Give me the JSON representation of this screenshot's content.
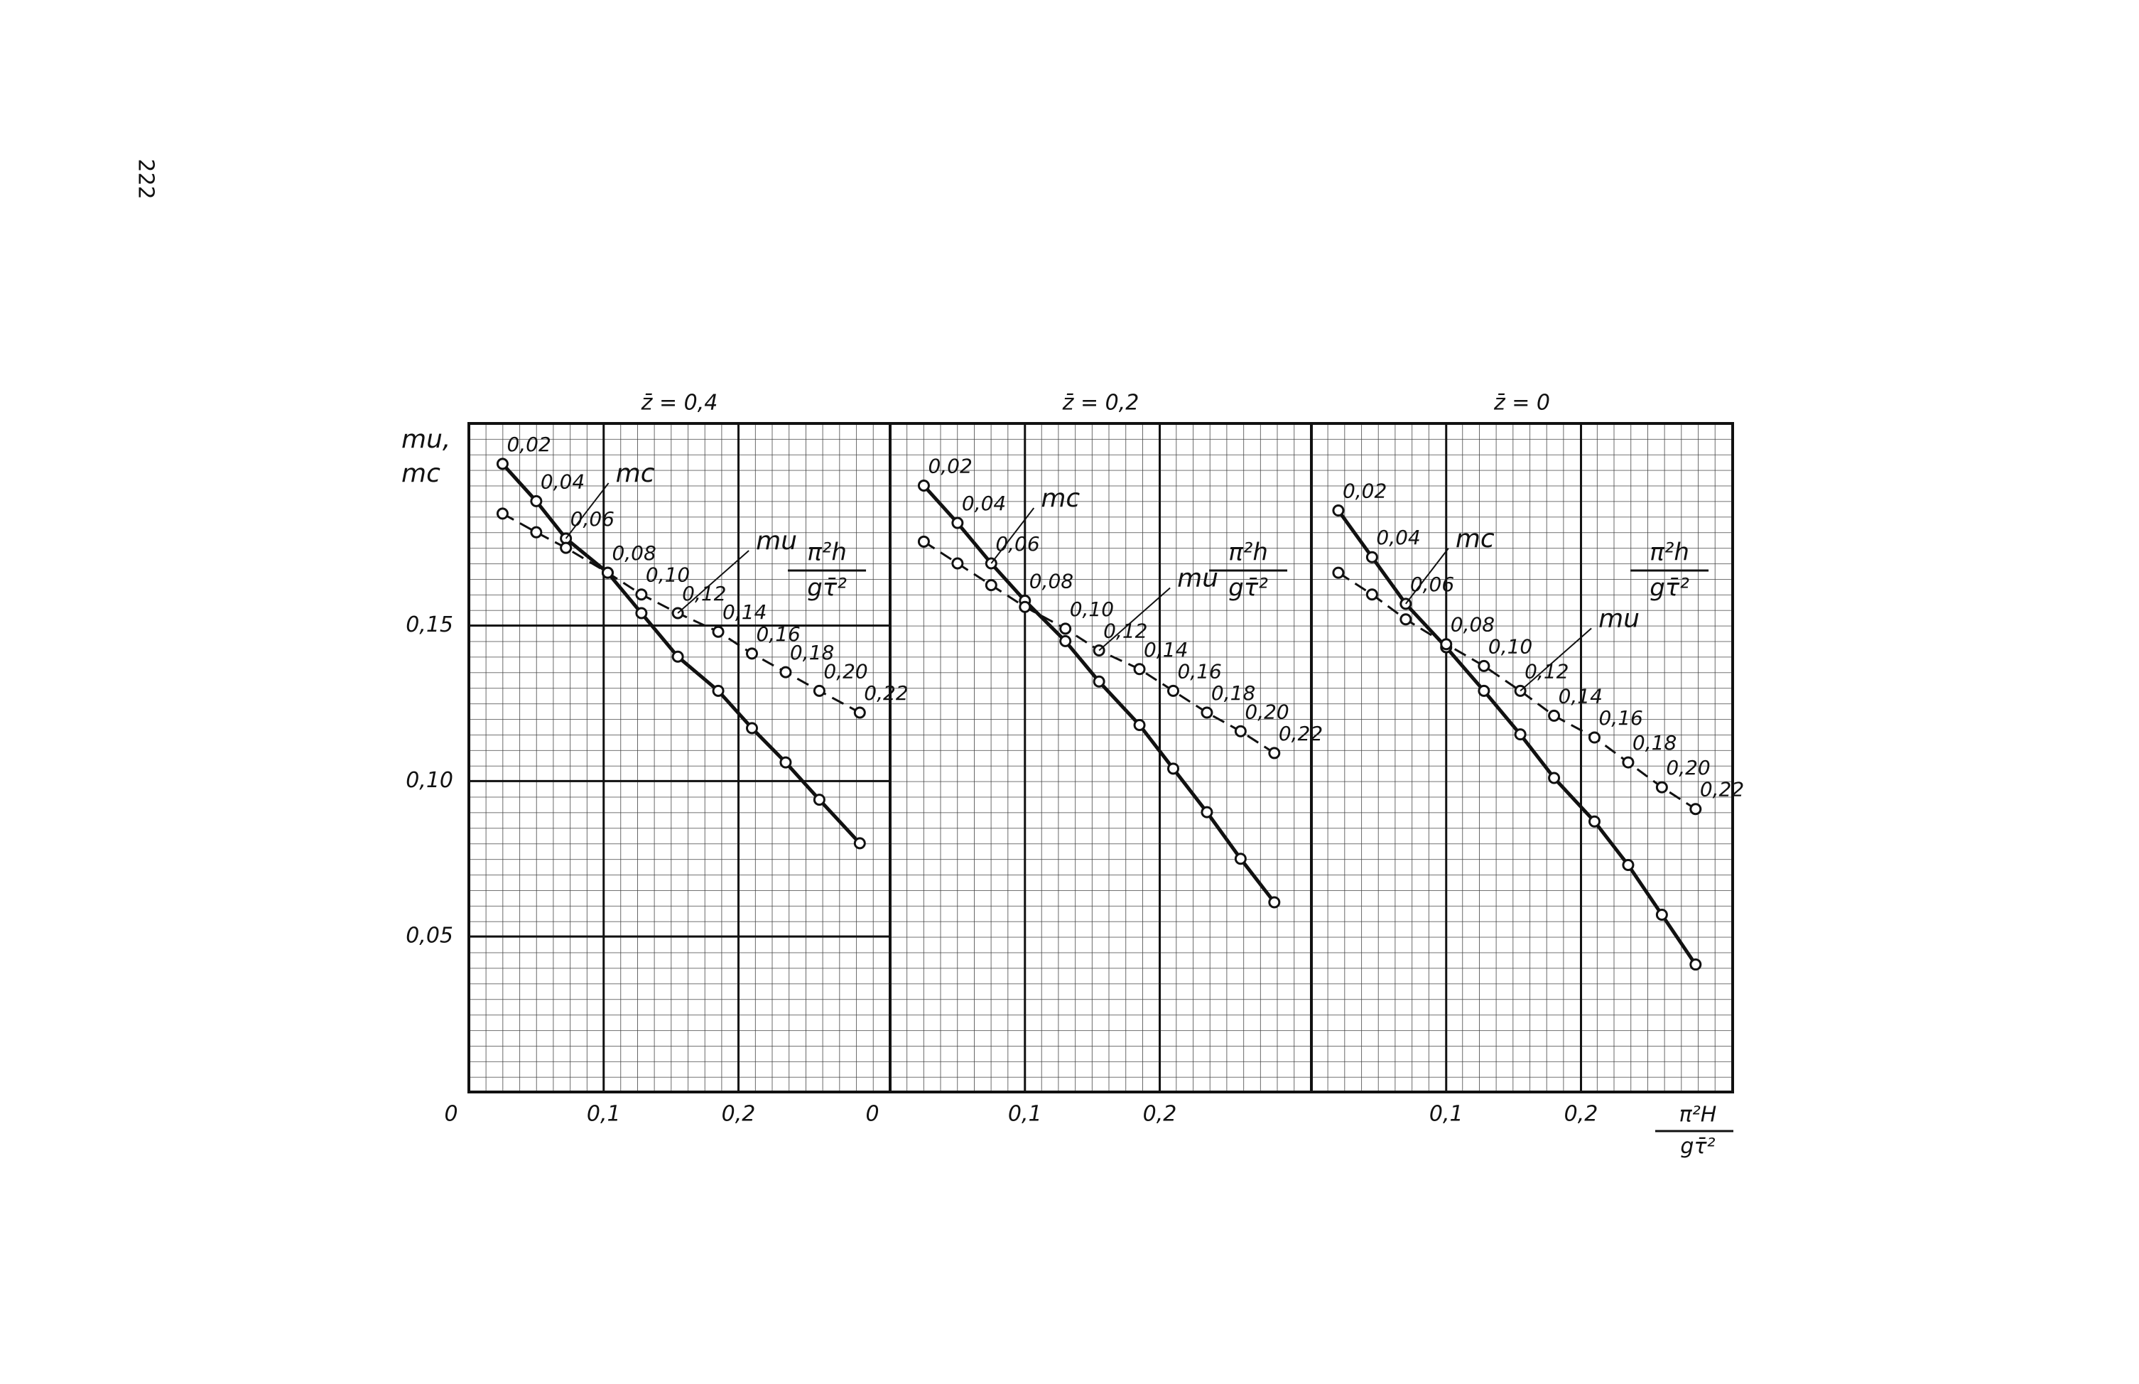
{
  "page_number": "222",
  "y_label": [
    "mu,",
    "mc"
  ],
  "x_label": {
    "numerator": "π²H",
    "denominator": "gτ̄²"
  },
  "chart_data": [
    {
      "type": "line",
      "title": "z̄ = 0,4",
      "x": [
        0.025,
        0.05,
        0.072,
        0.103,
        0.128,
        0.155,
        0.185,
        0.21,
        0.235,
        0.26,
        0.29
      ],
      "point_labels": [
        "0,02",
        "0,04",
        "0,06",
        "0,08",
        "0,10",
        "0,12",
        "0,14",
        "0,16",
        "0,18",
        "0,20",
        "0,22"
      ],
      "series": [
        {
          "name": "mc",
          "color": "#111111",
          "dashed": false,
          "values": [
            0.202,
            0.19,
            0.178,
            0.167,
            0.154,
            0.14,
            0.129,
            0.117,
            0.106,
            0.094,
            0.08
          ]
        },
        {
          "name": "mu",
          "color": "#111111",
          "dashed": true,
          "values": [
            0.186,
            0.18,
            0.175,
            0.167,
            0.16,
            0.154,
            0.148,
            0.141,
            0.135,
            0.129,
            0.122
          ]
        }
      ],
      "annotation": {
        "numerator": "π²h",
        "denominator": "gτ̄²"
      },
      "xlim": [
        0,
        0.3125
      ],
      "ylim": [
        0,
        0.215
      ],
      "xticks": [
        {
          "value": 0,
          "label": "0"
        },
        {
          "value": 0.1,
          "label": "0,1"
        },
        {
          "value": 0.2,
          "label": "0,2"
        }
      ],
      "yticks": [
        {
          "value": 0.05,
          "label": "0,05"
        },
        {
          "value": 0.1,
          "label": "0,10"
        },
        {
          "value": 0.15,
          "label": "0,15"
        }
      ],
      "grid": true
    },
    {
      "type": "line",
      "title": "z̄ = 0,2",
      "x": [
        0.025,
        0.05,
        0.075,
        0.1,
        0.13,
        0.155,
        0.185,
        0.21,
        0.235,
        0.26,
        0.285
      ],
      "point_labels": [
        "0,02",
        "0,04",
        "0,06",
        "0,08",
        "0,10",
        "0,12",
        "0,14",
        "0,16",
        "0,18",
        "0,20",
        "0,22"
      ],
      "series": [
        {
          "name": "mc",
          "color": "#111111",
          "dashed": false,
          "values": [
            0.195,
            0.183,
            0.17,
            0.158,
            0.145,
            0.132,
            0.118,
            0.104,
            0.09,
            0.075,
            0.061
          ]
        },
        {
          "name": "mu",
          "color": "#111111",
          "dashed": true,
          "values": [
            0.177,
            0.17,
            0.163,
            0.156,
            0.149,
            0.142,
            0.136,
            0.129,
            0.122,
            0.116,
            0.109
          ]
        }
      ],
      "annotation": {
        "numerator": "π²h",
        "denominator": "gτ̄²"
      },
      "xlim": [
        0,
        0.3125
      ],
      "ylim": [
        0,
        0.215
      ],
      "xticks": [
        {
          "value": 0,
          "label": "0"
        },
        {
          "value": 0.1,
          "label": "0,1"
        },
        {
          "value": 0.2,
          "label": "0,2"
        }
      ],
      "grid": true
    },
    {
      "type": "line",
      "title": "z̄ = 0",
      "x": [
        0.02,
        0.045,
        0.07,
        0.1,
        0.128,
        0.155,
        0.18,
        0.21,
        0.235,
        0.26,
        0.285
      ],
      "point_labels": [
        "0,02",
        "0,04",
        "0,06",
        "0,08",
        "0,10",
        "0,12",
        "0,14",
        "0,16",
        "0,18",
        "0,20",
        "0,22"
      ],
      "series": [
        {
          "name": "mc",
          "color": "#111111",
          "dashed": false,
          "values": [
            0.187,
            0.172,
            0.157,
            0.143,
            0.129,
            0.115,
            0.101,
            0.087,
            0.073,
            0.057,
            0.041
          ]
        },
        {
          "name": "mu",
          "color": "#111111",
          "dashed": true,
          "values": [
            0.167,
            0.16,
            0.152,
            0.144,
            0.137,
            0.129,
            0.121,
            0.114,
            0.106,
            0.098,
            0.091
          ]
        }
      ],
      "annotation": {
        "numerator": "π²h",
        "denominator": "gτ̄²"
      },
      "xlim": [
        0,
        0.3125
      ],
      "ylim": [
        0,
        0.215
      ],
      "xticks": [
        {
          "value": 0.1,
          "label": "0,1"
        },
        {
          "value": 0.2,
          "label": "0,2"
        }
      ],
      "grid": true
    }
  ]
}
